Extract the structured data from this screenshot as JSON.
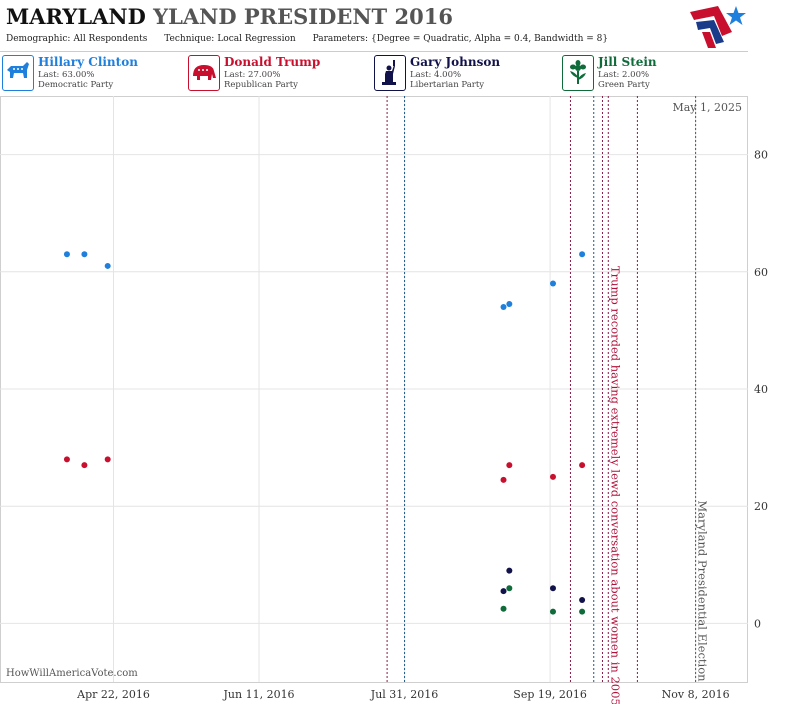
{
  "header": {
    "title_part1": "MARYLAND",
    "title_part2": "YLAND PRESIDENT 2016",
    "params": [
      {
        "label": "Demographic:",
        "value": "All Respondents"
      },
      {
        "label": "Technique:",
        "value": "Local Regression"
      },
      {
        "label": "Parameters:",
        "value": "{Degree = Quadratic, Alpha = 0.4, Bandwidth = 8}"
      }
    ]
  },
  "candidates": [
    {
      "name": "Hillary Clinton",
      "last": "Last: 63.00%",
      "party": "Democratic Party",
      "color": "#1f7fdc",
      "icon": "donkey-icon"
    },
    {
      "name": "Donald Trump",
      "last": "Last: 27.00%",
      "party": "Republican Party",
      "color": "#c8102e",
      "icon": "elephant-icon"
    },
    {
      "name": "Gary Johnson",
      "last": "Last: 4.00%",
      "party": "Libertarian Party",
      "color": "#12124a",
      "icon": "statue-of-liberty-icon"
    },
    {
      "name": "Jill Stein",
      "last": "Last: 2.00%",
      "party": "Green Party",
      "color": "#0f6b3a",
      "icon": "flower-icon"
    }
  ],
  "watermark": "HowWillAmericaVote.com",
  "chart_data": {
    "type": "scatter",
    "x_type": "date",
    "xlim": [
      "2016-03-14",
      "2016-11-26"
    ],
    "ylim": [
      -10,
      90
    ],
    "x_ticks": [
      {
        "date": "2016-04-22",
        "label": "Apr 22, 2016"
      },
      {
        "date": "2016-06-11",
        "label": "Jun 11, 2016"
      },
      {
        "date": "2016-07-31",
        "label": "Jul 31, 2016"
      },
      {
        "date": "2016-09-19",
        "label": "Sep 19, 2016"
      },
      {
        "date": "2016-11-08",
        "label": "Nov 8, 2016"
      }
    ],
    "y_ticks": [
      0,
      20,
      40,
      60,
      80
    ],
    "grid": true,
    "top_right_label": "May 1, 2025",
    "series": [
      {
        "name": "Hillary Clinton",
        "color": "#1f7fdc",
        "points": [
          {
            "x": "2016-04-06",
            "y": 63
          },
          {
            "x": "2016-04-12",
            "y": 63
          },
          {
            "x": "2016-04-20",
            "y": 61
          },
          {
            "x": "2016-09-03",
            "y": 54
          },
          {
            "x": "2016-09-05",
            "y": 54.5
          },
          {
            "x": "2016-09-20",
            "y": 58
          },
          {
            "x": "2016-09-30",
            "y": 63
          }
        ]
      },
      {
        "name": "Donald Trump",
        "color": "#c8102e",
        "points": [
          {
            "x": "2016-04-06",
            "y": 28
          },
          {
            "x": "2016-04-12",
            "y": 27
          },
          {
            "x": "2016-04-20",
            "y": 28
          },
          {
            "x": "2016-09-03",
            "y": 24.5
          },
          {
            "x": "2016-09-05",
            "y": 27
          },
          {
            "x": "2016-09-20",
            "y": 25
          },
          {
            "x": "2016-09-30",
            "y": 27
          }
        ]
      },
      {
        "name": "Gary Johnson",
        "color": "#12124a",
        "points": [
          {
            "x": "2016-09-03",
            "y": 5.5
          },
          {
            "x": "2016-09-05",
            "y": 9
          },
          {
            "x": "2016-09-20",
            "y": 6
          },
          {
            "x": "2016-09-30",
            "y": 4
          }
        ]
      },
      {
        "name": "Jill Stein",
        "color": "#0f6b3a",
        "points": [
          {
            "x": "2016-09-03",
            "y": 2.5
          },
          {
            "x": "2016-09-05",
            "y": 6
          },
          {
            "x": "2016-09-20",
            "y": 2
          },
          {
            "x": "2016-09-30",
            "y": 2
          }
        ]
      }
    ],
    "event_lines": [
      {
        "x": "2016-07-25",
        "color": "#8a1a4a"
      },
      {
        "x": "2016-07-31",
        "color": "#1a5a8a"
      },
      {
        "x": "2016-09-26",
        "color": "#8a1a4a"
      },
      {
        "x": "2016-10-04",
        "color": "#1a5a8a"
      },
      {
        "x": "2016-10-07",
        "color": "#8a1a4a"
      },
      {
        "x": "2016-10-09",
        "color": "#8a1a4a"
      },
      {
        "x": "2016-10-19",
        "color": "#8a1a4a"
      },
      {
        "x": "2016-11-08",
        "color": "#555555"
      }
    ],
    "annotations": [
      {
        "x": "2016-10-09",
        "text": "Trump recorded having extremely lewd conversation about women in 2005.",
        "color": "#b0103a",
        "y_top": 61
      },
      {
        "x": "2016-11-08",
        "text": "Maryland Presidential Election",
        "color": "#555555",
        "y_top": 21
      }
    ]
  }
}
